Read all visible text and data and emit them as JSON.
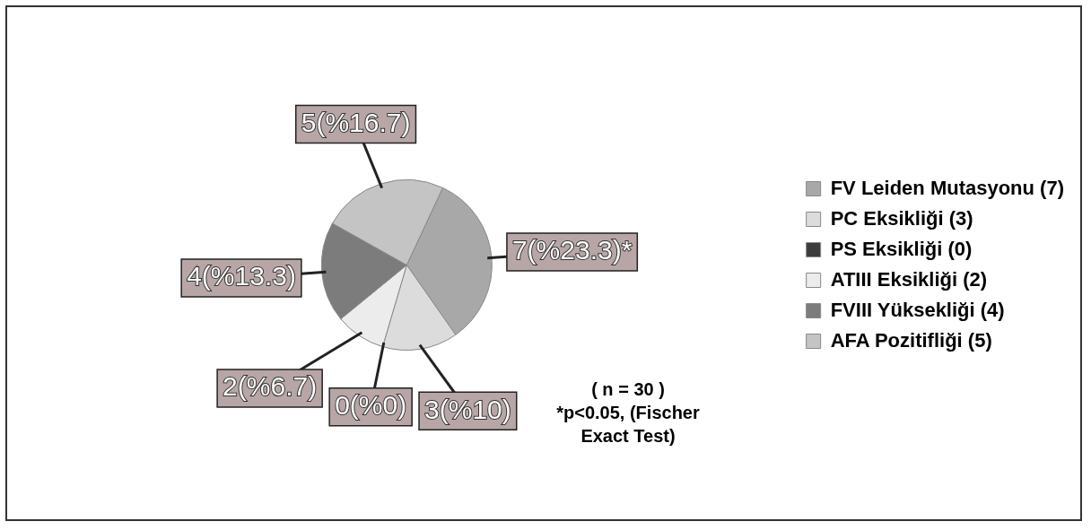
{
  "chart_data": {
    "type": "pie",
    "categories": [
      "FV Leiden Mutasyonu (7)",
      "PC Eksikliği (3)",
      "PS Eksikliği (0)",
      "ATIII Eksikliği (2)",
      "FVIII Yüksekliği (4)",
      "AFA Pozitifliği (5)"
    ],
    "values": [
      7,
      3,
      0,
      2,
      4,
      5
    ],
    "value_labels": [
      "7(%23.3)*",
      "3(%10)",
      "0(%0)",
      "2(%6.7)",
      "4(%13.3)",
      "5(%16.7)"
    ],
    "colors": [
      "#a8a8a8",
      "#dcdcdc",
      "#3c3c3c",
      "#ececec",
      "#7c7c7c",
      "#c4c4c4"
    ],
    "legend": "right",
    "annotations": [
      "( n = 30 )",
      "*p<0.05, (Fischer Exact Test)"
    ]
  }
}
